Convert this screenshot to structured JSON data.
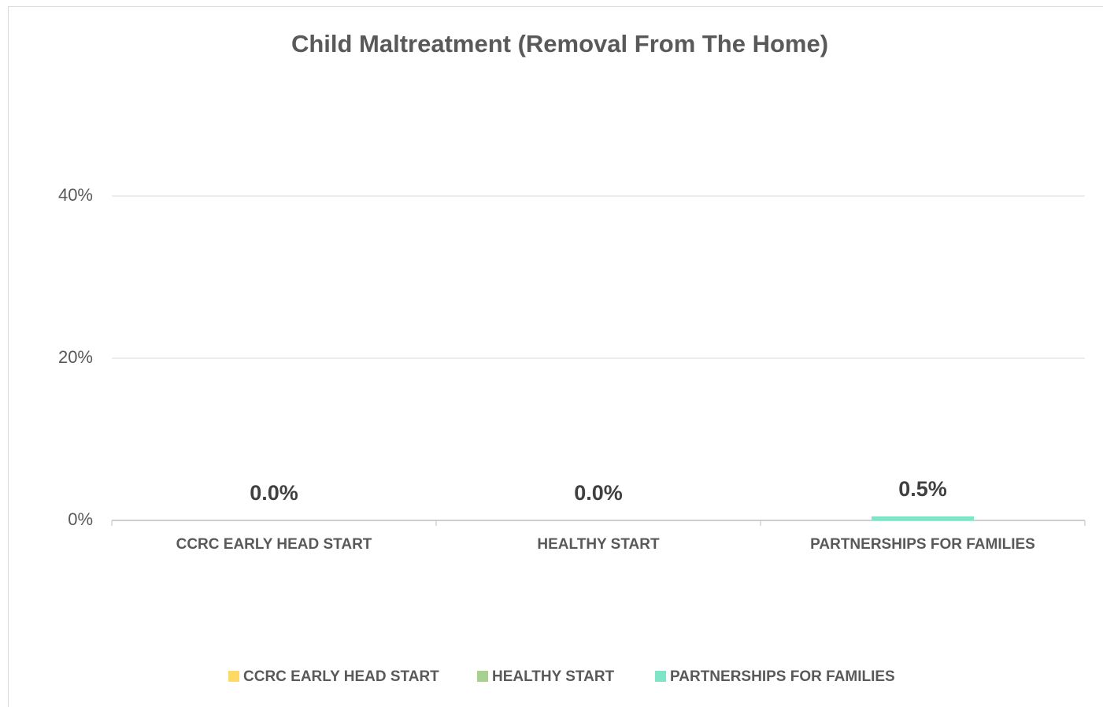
{
  "chart_data": {
    "type": "bar",
    "title": "Child Maltreatment (Removal From The Home)",
    "categories": [
      "CCRC EARLY HEAD START",
      "HEALTHY START",
      "PARTNERSHIPS FOR FAMILIES"
    ],
    "values": [
      0,
      0,
      0.5
    ],
    "value_labels": [
      "0.0%",
      "0.0%",
      "0.5%"
    ],
    "colors": [
      "#ffd966",
      "#a9d18e",
      "#7fe5c9"
    ],
    "ylim": [
      0,
      50
    ],
    "yticks": [
      {
        "value": 0,
        "label": "0%"
      },
      {
        "value": 20,
        "label": "20%"
      },
      {
        "value": 40,
        "label": "40%"
      }
    ],
    "grid": true,
    "legend": "bottom"
  }
}
